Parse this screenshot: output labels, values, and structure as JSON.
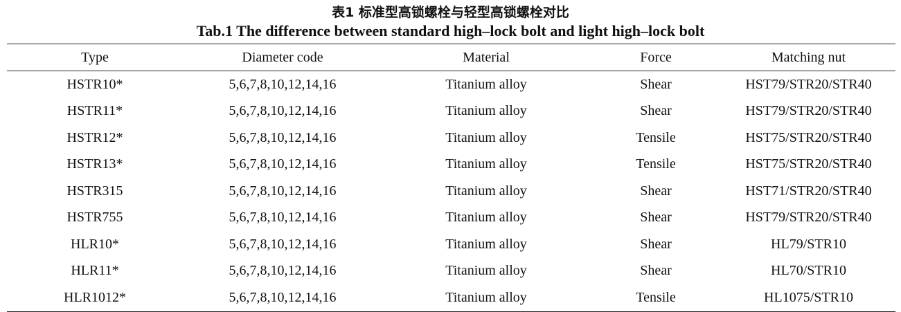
{
  "caption": {
    "title_cn": "表1 标准型高锁螺栓与轻型高锁螺栓对比",
    "title_en": "Tab.1 The difference between standard high–lock bolt and light high–lock bolt"
  },
  "table": {
    "headers": [
      "Type",
      "Diameter code",
      "Material",
      "Force",
      "Matching nut"
    ],
    "rows": [
      [
        "HSTR10*",
        "5,6,7,8,10,12,14,16",
        "Titanium alloy",
        "Shear",
        "HST79/STR20/STR40"
      ],
      [
        "HSTR11*",
        "5,6,7,8,10,12,14,16",
        "Titanium alloy",
        "Shear",
        "HST79/STR20/STR40"
      ],
      [
        "HSTR12*",
        "5,6,7,8,10,12,14,16",
        "Titanium alloy",
        "Tensile",
        "HST75/STR20/STR40"
      ],
      [
        "HSTR13*",
        "5,6,7,8,10,12,14,16",
        "Titanium alloy",
        "Tensile",
        "HST75/STR20/STR40"
      ],
      [
        "HSTR315",
        "5,6,7,8,10,12,14,16",
        "Titanium alloy",
        "Shear",
        "HST71/STR20/STR40"
      ],
      [
        "HSTR755",
        "5,6,7,8,10,12,14,16",
        "Titanium alloy",
        "Shear",
        "HST79/STR20/STR40"
      ],
      [
        "HLR10*",
        "5,6,7,8,10,12,14,16",
        "Titanium alloy",
        "Shear",
        "HL79/STR10"
      ],
      [
        "HLR11*",
        "5,6,7,8,10,12,14,16",
        "Titanium alloy",
        "Shear",
        "HL70/STR10"
      ],
      [
        "HLR1012*",
        "5,6,7,8,10,12,14,16",
        "Titanium alloy",
        "Tensile",
        "HL1075/STR10"
      ]
    ]
  }
}
